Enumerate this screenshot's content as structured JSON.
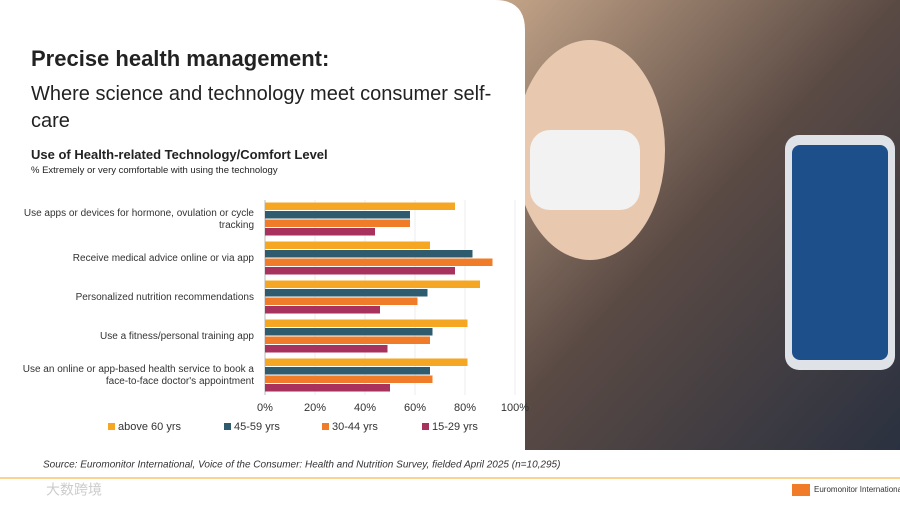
{
  "header": {
    "title": "Precise health management:",
    "subtitle": "Where science and technology meet consumer self-care"
  },
  "chart_data": {
    "type": "hbar",
    "title": "Use of Health-related Technology/Comfort Level",
    "subtitle": "% Extremely or very comfortable with using the technology",
    "categories": [
      "Use apps or devices for hormone, ovulation or cycle tracking",
      "Receive medical advice online or via app",
      "Personalized nutrition recommendations",
      "Use a fitness/personal training app",
      "Use an online or app-based health service to book a face-to-face doctor's appointment"
    ],
    "series": [
      {
        "name": "above 60 yrs",
        "color": "#f5a623",
        "values": [
          76,
          66,
          86,
          81,
          81
        ]
      },
      {
        "name": "45-59 yrs",
        "color": "#2f5b6f",
        "values": [
          58,
          83,
          65,
          67,
          66
        ]
      },
      {
        "name": "30-44 yrs",
        "color": "#f07c2a",
        "values": [
          58,
          91,
          61,
          66,
          67
        ]
      },
      {
        "name": "15-29 yrs",
        "color": "#a8325e",
        "values": [
          44,
          76,
          46,
          49,
          50
        ]
      }
    ],
    "xlim": [
      0,
      100
    ],
    "xticks": [
      {
        "value": 0,
        "label": "0%"
      },
      {
        "value": 20,
        "label": "20%"
      },
      {
        "value": 40,
        "label": "40%"
      },
      {
        "value": 60,
        "label": "60%"
      },
      {
        "value": 80,
        "label": "80%"
      },
      {
        "value": 100,
        "label": "100%"
      }
    ],
    "grid": true
  },
  "footer": {
    "source": "Source: Euromonitor International, Voice of the Consumer: Health and Nutrition Survey, fielded April 2025 (n=10,295)",
    "watermark": "大数跨境",
    "logo": "Euromonitor International"
  }
}
